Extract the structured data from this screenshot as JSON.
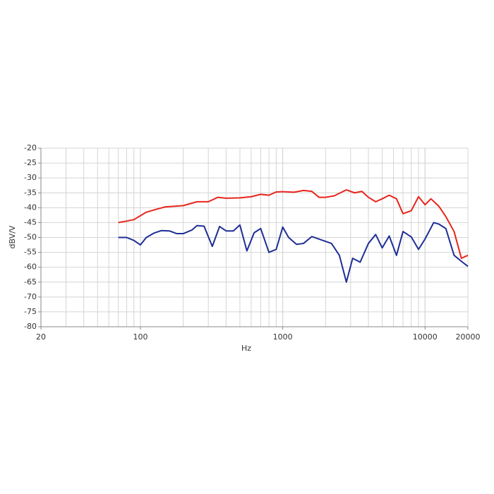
{
  "chart_data": {
    "type": "line",
    "x_label": "Hz",
    "y_label": "dBV/V",
    "xscale": "log",
    "xlim": [
      20,
      20000
    ],
    "ylim": [
      -80,
      -20
    ],
    "grid": true,
    "xticks": [
      20,
      100,
      1000,
      10000,
      20000
    ],
    "yticks": [
      -20,
      -25,
      -30,
      -35,
      -40,
      -45,
      -50,
      -55,
      -60,
      -65,
      -70,
      -75,
      -80
    ],
    "series": [
      {
        "color": "#e8251c",
        "x": [
          70,
          80,
          90,
          110,
          130,
          150,
          200,
          250,
          300,
          350,
          400,
          500,
          600,
          700,
          800,
          900,
          1000,
          1200,
          1400,
          1600,
          1800,
          2000,
          2300,
          2800,
          3200,
          3600,
          4000,
          4500,
          5000,
          5600,
          6300,
          7000,
          8000,
          9000,
          10000,
          11000,
          12500,
          14000,
          16000,
          18000,
          20000
        ],
        "values": [
          -45,
          -44.5,
          -44,
          -41.5,
          -40.5,
          -39.7,
          -39.3,
          -38,
          -38,
          -36.5,
          -36.8,
          -36.7,
          -36.3,
          -35.5,
          -35.8,
          -34.7,
          -34.6,
          -34.8,
          -34.2,
          -34.5,
          -36.5,
          -36.5,
          -36,
          -34,
          -35,
          -34.5,
          -36.5,
          -38,
          -37,
          -35.8,
          -37,
          -42,
          -41,
          -36.3,
          -39,
          -37,
          -39.5,
          -43,
          -48,
          -57,
          -56
        ]
      },
      {
        "color": "#1f2e96",
        "x": [
          70,
          80,
          90,
          100,
          110,
          125,
          140,
          160,
          180,
          200,
          230,
          250,
          280,
          320,
          360,
          400,
          450,
          500,
          560,
          630,
          700,
          800,
          900,
          1000,
          1100,
          1250,
          1400,
          1600,
          2200,
          2500,
          2800,
          3100,
          3500,
          4000,
          4500,
          5000,
          5600,
          6300,
          7000,
          8000,
          9000,
          10000,
          11500,
          12500,
          14000,
          16000,
          18000,
          20000
        ],
        "values": [
          -50,
          -50,
          -51,
          -52.5,
          -50,
          -48.5,
          -47.7,
          -47.8,
          -48.7,
          -48.7,
          -47.5,
          -46,
          -46.2,
          -53,
          -46.3,
          -47.8,
          -47.8,
          -45.8,
          -54.5,
          -48.4,
          -47,
          -55,
          -54,
          -46.5,
          -50,
          -52.3,
          -52,
          -49.7,
          -52,
          -56,
          -65,
          -57,
          -58.3,
          -52,
          -49,
          -53.5,
          -49.5,
          -56,
          -48,
          -49.8,
          -54,
          -50.5,
          -45,
          -45.5,
          -47,
          -56,
          -58,
          -59.7
        ]
      }
    ]
  }
}
